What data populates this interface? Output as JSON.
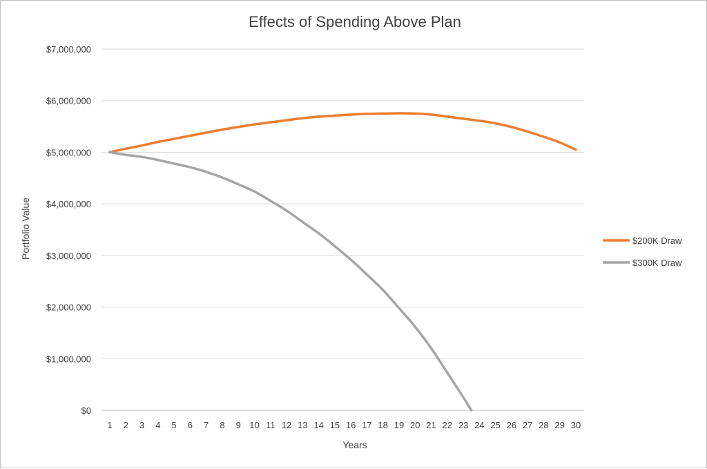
{
  "chart_data": {
    "type": "line",
    "title": "Effects of Spending Above Plan",
    "xlabel": "Years",
    "ylabel": "Portfolio Value",
    "x": [
      1,
      2,
      3,
      4,
      5,
      6,
      7,
      8,
      9,
      10,
      11,
      12,
      13,
      14,
      15,
      16,
      17,
      18,
      19,
      20,
      21,
      22,
      23,
      24,
      25,
      26,
      27,
      28,
      29,
      30
    ],
    "x_tick_labels": [
      "1",
      "2",
      "3",
      "4",
      "5",
      "6",
      "7",
      "8",
      "9",
      "10",
      "11",
      "12",
      "13",
      "14",
      "15",
      "16",
      "17",
      "18",
      "19",
      "20",
      "21",
      "22",
      "23",
      "24",
      "25",
      "26",
      "27",
      "28",
      "29",
      "30"
    ],
    "ylim": [
      0,
      7000000
    ],
    "y_tick_values": [
      0,
      1000000,
      2000000,
      3000000,
      4000000,
      5000000,
      6000000,
      7000000
    ],
    "y_tick_labels": [
      "$0",
      "$1,000,000",
      "$2,000,000",
      "$3,000,000",
      "$4,000,000",
      "$5,000,000",
      "$6,000,000",
      "$7,000,000"
    ],
    "grid": "horizontal",
    "legend_position": "right",
    "series": [
      {
        "name": "$200K Draw",
        "color": "#ed7d31",
        "values": [
          5000000,
          5070000,
          5130000,
          5200000,
          5260000,
          5320000,
          5380000,
          5440000,
          5490000,
          5540000,
          5580000,
          5620000,
          5660000,
          5690000,
          5710000,
          5730000,
          5745000,
          5750000,
          5755000,
          5750000,
          5730000,
          5690000,
          5650000,
          5610000,
          5560000,
          5490000,
          5400000,
          5300000,
          5190000,
          5050000
        ]
      },
      {
        "name": "$300K Draw",
        "color": "#a5a5a5",
        "x_values": [
          1,
          2,
          3,
          4,
          5,
          6,
          7,
          8,
          9,
          10,
          11,
          12,
          13,
          14,
          15,
          16,
          17,
          18,
          19,
          20,
          21,
          22,
          23,
          23.5
        ],
        "values": [
          5000000,
          4950000,
          4910000,
          4850000,
          4780000,
          4710000,
          4620000,
          4510000,
          4380000,
          4240000,
          4060000,
          3870000,
          3650000,
          3430000,
          3180000,
          2920000,
          2630000,
          2330000,
          1980000,
          1620000,
          1200000,
          730000,
          250000,
          0
        ]
      }
    ]
  }
}
